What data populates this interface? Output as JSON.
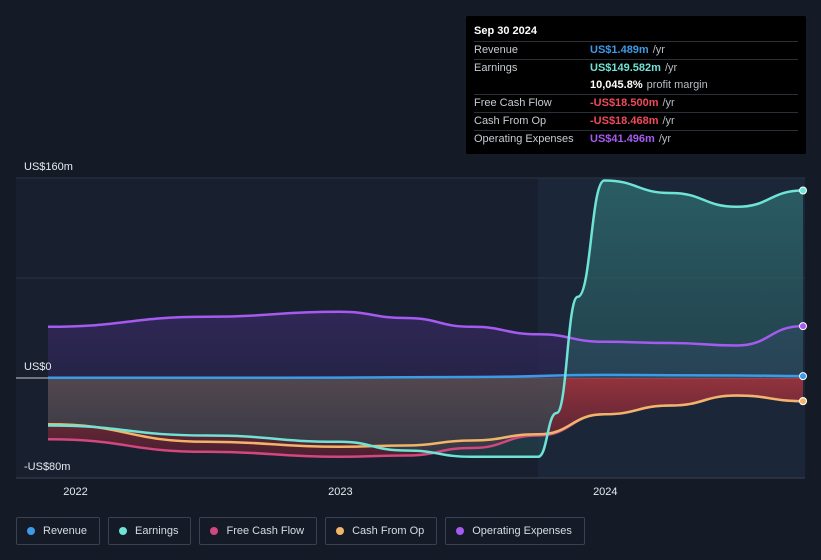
{
  "tooltip": {
    "date": "Sep 30 2024",
    "rows": [
      {
        "label": "Revenue",
        "value": "US$1.489m",
        "unit": "/yr",
        "color": "#3d9ae8"
      },
      {
        "label": "Earnings",
        "value": "US$149.582m",
        "unit": "/yr",
        "color": "#6fe3d6"
      },
      {
        "label": "",
        "value": "10,045.8%",
        "unit": "profit margin",
        "color": "#ffffff"
      },
      {
        "label": "Free Cash Flow",
        "value": "-US$18.500m",
        "unit": "/yr",
        "color": "#f04a5a"
      },
      {
        "label": "Cash From Op",
        "value": "-US$18.468m",
        "unit": "/yr",
        "color": "#f04a5a"
      },
      {
        "label": "Operating Expenses",
        "value": "US$41.496m",
        "unit": "/yr",
        "color": "#a55af0"
      }
    ]
  },
  "legend": [
    {
      "label": "Revenue",
      "color": "#3d9ae8"
    },
    {
      "label": "Earnings",
      "color": "#6fe3d6"
    },
    {
      "label": "Free Cash Flow",
      "color": "#d1477e"
    },
    {
      "label": "Cash From Op",
      "color": "#f0b56a"
    },
    {
      "label": "Operating Expenses",
      "color": "#a55af0"
    }
  ],
  "chart_data": {
    "type": "area",
    "title": "",
    "y_unit": "US$m",
    "ylim": [
      -80,
      160
    ],
    "y_tick_labels": [
      {
        "value": 160,
        "label": "US$160m"
      },
      {
        "value": 0,
        "label": "US$0"
      },
      {
        "value": -80,
        "label": "-US$80m"
      }
    ],
    "xlim": [
      2021.9,
      2024.75
    ],
    "x_tick_labels": [
      {
        "value": 2022,
        "label": "2022"
      },
      {
        "value": 2023,
        "label": "2023"
      },
      {
        "value": 2024,
        "label": "2024"
      }
    ],
    "highlight_from": 2023.75,
    "series": [
      {
        "name": "Revenue",
        "color": "#3d9ae8",
        "points": [
          [
            2021.9,
            0.2
          ],
          [
            2022.5,
            0.2
          ],
          [
            2023.0,
            0.3
          ],
          [
            2023.5,
            0.8
          ],
          [
            2024.0,
            2.5
          ],
          [
            2024.5,
            2.0
          ],
          [
            2024.75,
            1.5
          ]
        ]
      },
      {
        "name": "Earnings",
        "color": "#6fe3d6",
        "points": [
          [
            2021.9,
            -38
          ],
          [
            2022.5,
            -46
          ],
          [
            2023.0,
            -51
          ],
          [
            2023.25,
            -58
          ],
          [
            2023.5,
            -63
          ],
          [
            2023.75,
            -63
          ],
          [
            2023.82,
            -28
          ],
          [
            2023.9,
            65
          ],
          [
            2024.0,
            158
          ],
          [
            2024.25,
            148
          ],
          [
            2024.5,
            137
          ],
          [
            2024.75,
            150
          ]
        ]
      },
      {
        "name": "Free Cash Flow",
        "color": "#d1477e",
        "points": [
          [
            2021.9,
            -49
          ],
          [
            2022.5,
            -59
          ],
          [
            2023.0,
            -63
          ],
          [
            2023.25,
            -62
          ],
          [
            2023.5,
            -56
          ],
          [
            2023.75,
            -46
          ],
          [
            2024.0,
            -29
          ],
          [
            2024.25,
            -22
          ],
          [
            2024.5,
            -14
          ],
          [
            2024.75,
            -18.5
          ]
        ]
      },
      {
        "name": "Cash From Op",
        "color": "#f0b56a",
        "points": [
          [
            2021.9,
            -37
          ],
          [
            2022.5,
            -51
          ],
          [
            2023.0,
            -55
          ],
          [
            2023.25,
            -54
          ],
          [
            2023.5,
            -50
          ],
          [
            2023.75,
            -45
          ],
          [
            2024.0,
            -29
          ],
          [
            2024.25,
            -22
          ],
          [
            2024.5,
            -14
          ],
          [
            2024.75,
            -18.5
          ]
        ]
      },
      {
        "name": "Operating Expenses",
        "color": "#a55af0",
        "points": [
          [
            2021.9,
            41
          ],
          [
            2022.5,
            49
          ],
          [
            2023.0,
            53
          ],
          [
            2023.25,
            48
          ],
          [
            2023.5,
            41
          ],
          [
            2023.75,
            35
          ],
          [
            2024.0,
            29
          ],
          [
            2024.25,
            28
          ],
          [
            2024.5,
            26
          ],
          [
            2024.75,
            41.5
          ]
        ]
      }
    ]
  }
}
